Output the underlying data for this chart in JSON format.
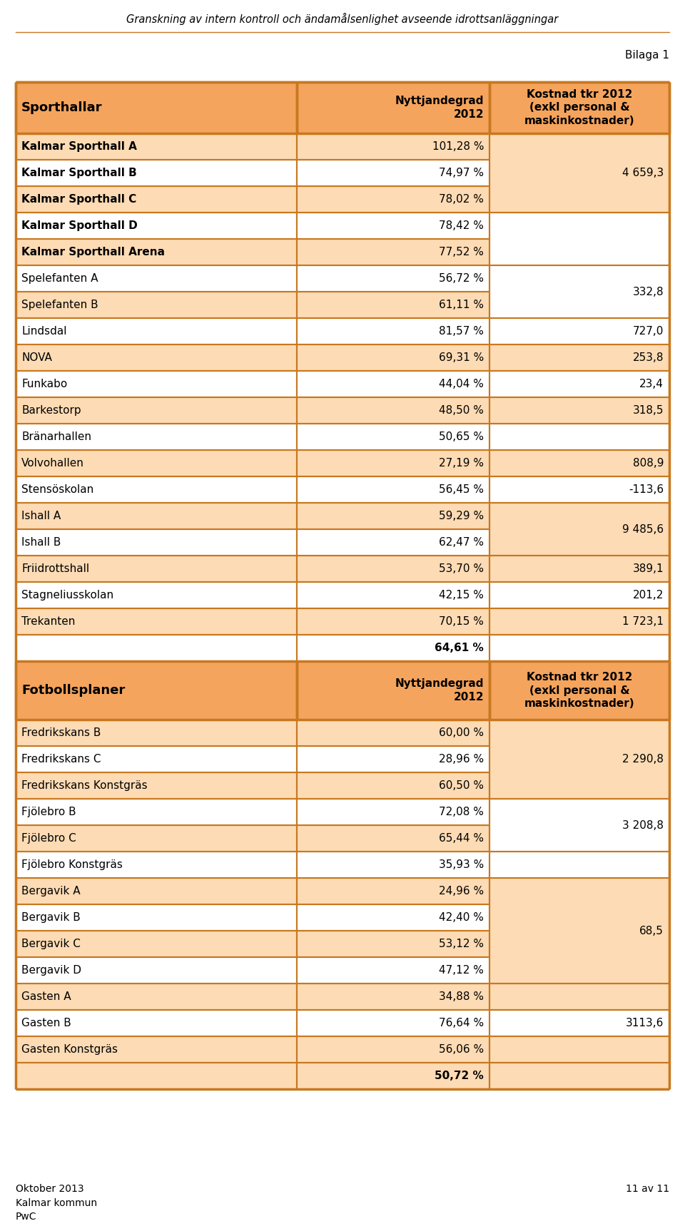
{
  "page_title": "Granskning av intern kontroll och ändamålsenlighet avseende idrottsanläggningar",
  "bilaga": "Bilaga 1",
  "footer_left": "Oktober 2013\nKalmar kommun\nPwC",
  "footer_right": "11 av 11",
  "bg_color": "#FFFFFF",
  "header_bg": "#F5A45D",
  "border_color": "#C87820",
  "col1_header": "Sporthallar",
  "col2_header": "Nyttjandegrad\n2012",
  "col3_header": "Kostnad tkr 2012\n(exkl personal &\nmaskinkostnader)",
  "sporthallar_rows": [
    {
      "name": "Kalmar Sporthall A",
      "pct": "101,28 %",
      "bold_name": true,
      "row_bg": "#FDDBB4"
    },
    {
      "name": "Kalmar Sporthall B",
      "pct": "74,97 %",
      "bold_name": true,
      "row_bg": "#FFFFFF"
    },
    {
      "name": "Kalmar Sporthall C",
      "pct": "78,02 %",
      "bold_name": true,
      "row_bg": "#FDDBB4"
    },
    {
      "name": "Kalmar Sporthall D",
      "pct": "78,42 %",
      "bold_name": true,
      "row_bg": "#FFFFFF"
    },
    {
      "name": "Kalmar Sporthall Arena",
      "pct": "77,52 %",
      "bold_name": true,
      "row_bg": "#FDDBB4"
    },
    {
      "name": "Spelefanten A",
      "pct": "56,72 %",
      "bold_name": false,
      "row_bg": "#FFFFFF"
    },
    {
      "name": "Spelefanten B",
      "pct": "61,11 %",
      "bold_name": false,
      "row_bg": "#FDDBB4"
    },
    {
      "name": "Lindsdal",
      "pct": "81,57 %",
      "bold_name": false,
      "row_bg": "#FFFFFF"
    },
    {
      "name": "NOVA",
      "pct": "69,31 %",
      "bold_name": false,
      "row_bg": "#FDDBB4"
    },
    {
      "name": "Funkabo",
      "pct": "44,04 %",
      "bold_name": false,
      "row_bg": "#FFFFFF"
    },
    {
      "name": "Barkestorp",
      "pct": "48,50 %",
      "bold_name": false,
      "row_bg": "#FDDBB4"
    },
    {
      "name": "Bränarhallen",
      "pct": "50,65 %",
      "bold_name": false,
      "row_bg": "#FFFFFF"
    },
    {
      "name": "Volvohallen",
      "pct": "27,19 %",
      "bold_name": false,
      "row_bg": "#FDDBB4"
    },
    {
      "name": "Stensöskolan",
      "pct": "56,45 %",
      "bold_name": false,
      "row_bg": "#FFFFFF"
    },
    {
      "name": "Ishall A",
      "pct": "59,29 %",
      "bold_name": false,
      "row_bg": "#FDDBB4"
    },
    {
      "name": "Ishall B",
      "pct": "62,47 %",
      "bold_name": false,
      "row_bg": "#FFFFFF"
    },
    {
      "name": "Friidrottshall",
      "pct": "53,70 %",
      "bold_name": false,
      "row_bg": "#FDDBB4"
    },
    {
      "name": "Stagneliusskolan",
      "pct": "42,15 %",
      "bold_name": false,
      "row_bg": "#FFFFFF"
    },
    {
      "name": "Trekanten",
      "pct": "70,15 %",
      "bold_name": false,
      "row_bg": "#FDDBB4"
    },
    {
      "name": "",
      "pct": "64,61 %",
      "bold_name": false,
      "row_bg": "#FFFFFF",
      "pct_bold": true
    }
  ],
  "sport_merged_col3": [
    {
      "start": 0,
      "end": 2,
      "cost": "4 659,3",
      "bg": "#FDDBB4"
    },
    {
      "start": 3,
      "end": 4,
      "cost": "",
      "bg": "#FFFFFF"
    },
    {
      "start": 5,
      "end": 6,
      "cost": "332,8",
      "bg": "#FFFFFF"
    },
    {
      "start": 7,
      "end": 7,
      "cost": "727,0",
      "bg": "#FFFFFF"
    },
    {
      "start": 8,
      "end": 8,
      "cost": "253,8",
      "bg": "#FDDBB4"
    },
    {
      "start": 9,
      "end": 9,
      "cost": "23,4",
      "bg": "#FFFFFF"
    },
    {
      "start": 10,
      "end": 10,
      "cost": "318,5",
      "bg": "#FDDBB4"
    },
    {
      "start": 11,
      "end": 11,
      "cost": "",
      "bg": "#FFFFFF"
    },
    {
      "start": 12,
      "end": 12,
      "cost": "808,9",
      "bg": "#FDDBB4"
    },
    {
      "start": 13,
      "end": 13,
      "cost": "-113,6",
      "bg": "#FFFFFF"
    },
    {
      "start": 14,
      "end": 15,
      "cost": "9 485,6",
      "bg": "#FDDBB4"
    },
    {
      "start": 16,
      "end": 16,
      "cost": "389,1",
      "bg": "#FDDBB4"
    },
    {
      "start": 17,
      "end": 17,
      "cost": "201,2",
      "bg": "#FFFFFF"
    },
    {
      "start": 18,
      "end": 18,
      "cost": "1 723,1",
      "bg": "#FDDBB4"
    },
    {
      "start": 19,
      "end": 19,
      "cost": "",
      "bg": "#FFFFFF"
    }
  ],
  "fotboll_header": {
    "col1": "Fotbollsplaner",
    "col2": "Nyttjandegrad\n2012",
    "col3": "Kostnad tkr 2012\n(exkl personal &\nmaskinkostnader)"
  },
  "fotboll_rows": [
    {
      "name": "Fredrikskans B",
      "pct": "60,00 %",
      "bold_name": false,
      "row_bg": "#FDDBB4"
    },
    {
      "name": "Fredrikskans C",
      "pct": "28,96 %",
      "bold_name": false,
      "row_bg": "#FFFFFF"
    },
    {
      "name": "Fredrikskans Konstgräs",
      "pct": "60,50 %",
      "bold_name": false,
      "row_bg": "#FDDBB4"
    },
    {
      "name": "Fjölebro B",
      "pct": "72,08 %",
      "bold_name": false,
      "row_bg": "#FFFFFF"
    },
    {
      "name": "Fjölebro C",
      "pct": "65,44 %",
      "bold_name": false,
      "row_bg": "#FDDBB4"
    },
    {
      "name": "Fjölebro Konstgräs",
      "pct": "35,93 %",
      "bold_name": false,
      "row_bg": "#FFFFFF"
    },
    {
      "name": "Bergavik A",
      "pct": "24,96 %",
      "bold_name": false,
      "row_bg": "#FDDBB4"
    },
    {
      "name": "Bergavik B",
      "pct": "42,40 %",
      "bold_name": false,
      "row_bg": "#FFFFFF"
    },
    {
      "name": "Bergavik C",
      "pct": "53,12 %",
      "bold_name": false,
      "row_bg": "#FDDBB4"
    },
    {
      "name": "Bergavik D",
      "pct": "47,12 %",
      "bold_name": false,
      "row_bg": "#FFFFFF"
    },
    {
      "name": "Gasten A",
      "pct": "34,88 %",
      "bold_name": false,
      "row_bg": "#FDDBB4"
    },
    {
      "name": "Gasten B",
      "pct": "76,64 %",
      "bold_name": false,
      "row_bg": "#FFFFFF"
    },
    {
      "name": "Gasten Konstgräs",
      "pct": "56,06 %",
      "bold_name": false,
      "row_bg": "#FDDBB4"
    },
    {
      "name": "",
      "pct": "50,72 %",
      "bold_name": false,
      "row_bg": "#FDDBB4",
      "pct_bold": true
    }
  ],
  "fotboll_merged_col3": [
    {
      "start": 0,
      "end": 2,
      "cost": "2 290,8",
      "bg": "#FDDBB4"
    },
    {
      "start": 3,
      "end": 4,
      "cost": "3 208,8",
      "bg": "#FFFFFF"
    },
    {
      "start": 5,
      "end": 5,
      "cost": "",
      "bg": "#FFFFFF"
    },
    {
      "start": 6,
      "end": 9,
      "cost": "68,5",
      "bg": "#FDDBB4"
    },
    {
      "start": 10,
      "end": 10,
      "cost": "",
      "bg": "#FDDBB4"
    },
    {
      "start": 11,
      "end": 11,
      "cost": "3113,6",
      "bg": "#FFFFFF"
    },
    {
      "start": 12,
      "end": 12,
      "cost": "",
      "bg": "#FDDBB4"
    },
    {
      "start": 13,
      "end": 13,
      "cost": "",
      "bg": "#FDDBB4"
    }
  ]
}
